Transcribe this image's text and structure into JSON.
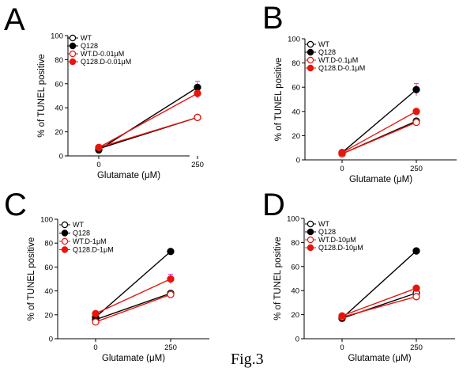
{
  "colors": {
    "black": "#000000",
    "red": "#e8150d",
    "error": "#cc33cc"
  },
  "caption": "Fig.3",
  "chart_data": [
    {
      "type": "line",
      "panel": "A",
      "xlabel": "Glutamate (μM)",
      "ylabel": "% of TUNEL positive",
      "categories": [
        "0",
        "250"
      ],
      "ylim": [
        0,
        100
      ],
      "yticks": [
        0,
        20,
        40,
        60,
        80,
        100
      ],
      "legend_position": "top-left",
      "series": [
        {
          "name": "WT",
          "values": [
            6,
            32
          ],
          "marker": "open",
          "color": "black"
        },
        {
          "name": "Q128",
          "values": [
            5,
            57
          ],
          "marker": "filled",
          "color": "black"
        },
        {
          "name": "WT.D-0.01μM",
          "values": [
            7,
            32
          ],
          "marker": "open",
          "color": "red"
        },
        {
          "name": "Q128.D-0.01μM",
          "values": [
            7,
            52
          ],
          "marker": "filled",
          "color": "red"
        }
      ],
      "error_bars": [
        {
          "series": "Q128",
          "x": "250",
          "value": 5
        },
        {
          "series": "Q128.D-0.01μM",
          "x": "250",
          "value": 4
        }
      ]
    },
    {
      "type": "line",
      "panel": "B",
      "xlabel": "Glutamate (μM)",
      "ylabel": "% of TUNEL positive",
      "categories": [
        "0",
        "250"
      ],
      "ylim": [
        0,
        100
      ],
      "yticks": [
        0,
        20,
        40,
        60,
        80,
        100
      ],
      "legend_position": "top-left",
      "series": [
        {
          "name": "WT",
          "values": [
            5,
            32
          ],
          "marker": "open",
          "color": "black"
        },
        {
          "name": "Q128",
          "values": [
            6,
            58
          ],
          "marker": "filled",
          "color": "black"
        },
        {
          "name": "WT.D-0.1μM",
          "values": [
            5,
            31
          ],
          "marker": "open",
          "color": "red"
        },
        {
          "name": "Q128.D-0.1μM",
          "values": [
            6,
            40
          ],
          "marker": "filled",
          "color": "red"
        }
      ],
      "error_bars": [
        {
          "series": "Q128",
          "x": "250",
          "value": 5
        }
      ]
    },
    {
      "type": "line",
      "panel": "C",
      "xlabel": "Glutamate (μM)",
      "ylabel": "% of TUNEL positive",
      "categories": [
        "0",
        "250"
      ],
      "ylim": [
        0,
        100
      ],
      "yticks": [
        0,
        20,
        40,
        60,
        80,
        100
      ],
      "legend_position": "top-left",
      "series": [
        {
          "name": "WT",
          "values": [
            16,
            38
          ],
          "marker": "open",
          "color": "black"
        },
        {
          "name": "Q128",
          "values": [
            18,
            73
          ],
          "marker": "filled",
          "color": "black"
        },
        {
          "name": "WT.D-1μM",
          "values": [
            14,
            37
          ],
          "marker": "open",
          "color": "red"
        },
        {
          "name": "Q128.D-1μM",
          "values": [
            21,
            50
          ],
          "marker": "filled",
          "color": "red"
        }
      ],
      "error_bars": [
        {
          "series": "Q128.D-1μM",
          "x": "250",
          "value": 4
        }
      ]
    },
    {
      "type": "line",
      "panel": "D",
      "xlabel": "Glutamate (μM)",
      "ylabel": "% of TUNEL positive",
      "categories": [
        "0",
        "250"
      ],
      "ylim": [
        0,
        100
      ],
      "yticks": [
        0,
        20,
        40,
        60,
        80,
        100
      ],
      "legend_position": "top-left",
      "series": [
        {
          "name": "WT",
          "values": [
            17,
            38
          ],
          "marker": "open",
          "color": "black"
        },
        {
          "name": "Q128",
          "values": [
            17,
            73
          ],
          "marker": "filled",
          "color": "black"
        },
        {
          "name": "WT.D-10μM",
          "values": [
            18,
            35
          ],
          "marker": "open",
          "color": "red"
        },
        {
          "name": "Q128.D-10μM",
          "values": [
            19,
            42
          ],
          "marker": "filled",
          "color": "red"
        }
      ],
      "error_bars": []
    }
  ]
}
